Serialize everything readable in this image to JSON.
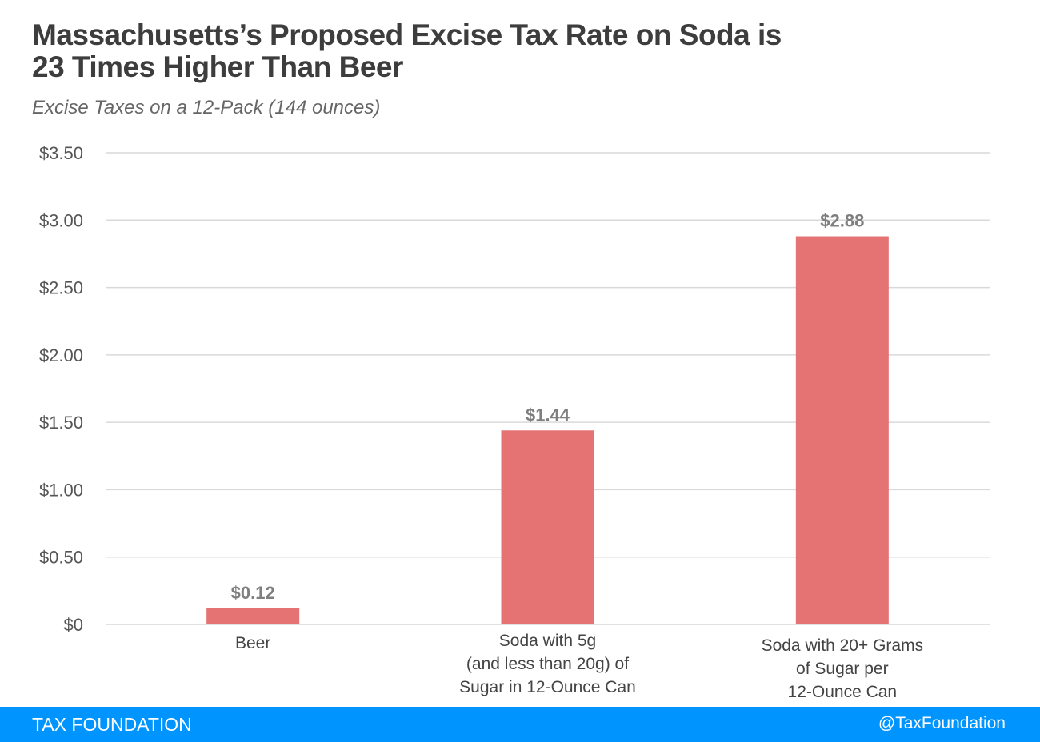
{
  "header": {
    "title_line1": "Massachusetts’s Proposed Excise Tax Rate on Soda is",
    "title_line2": "23 Times Higher Than Beer",
    "subtitle": "Excise Taxes on a 12-Pack (144 ounces)"
  },
  "footer": {
    "brand": "TAX FOUNDATION",
    "handle": "@TaxFoundation",
    "color": "#0094ff"
  },
  "chart_data": {
    "type": "bar",
    "title": "Massachusetts’s Proposed Excise Tax Rate on Soda is 23 Times Higher Than Beer",
    "subtitle": "Excise Taxes on a 12-Pack (144 ounces)",
    "categories": [
      [
        "Beer"
      ],
      [
        "Soda with 5g",
        "(and less than 20g) of",
        "Sugar in 12-Ounce Can"
      ],
      [
        "Soda with 20+ Grams",
        "of Sugar per",
        "12-Ounce Can"
      ]
    ],
    "values": [
      0.12,
      1.44,
      2.88
    ],
    "data_labels": [
      "$0.12",
      "$1.44",
      "$2.88"
    ],
    "xlabel": "",
    "ylabel": "",
    "ylim": [
      0,
      3.5
    ],
    "yticks": [
      0,
      0.5,
      1.0,
      1.5,
      2.0,
      2.5,
      3.0,
      3.5
    ],
    "ytick_labels": [
      "$0",
      "$0.50",
      "$1.00",
      "$1.50",
      "$2.00",
      "$2.50",
      "$3.00",
      "$3.50"
    ],
    "grid": true,
    "legend": "none",
    "bar_color": "#e57373"
  }
}
